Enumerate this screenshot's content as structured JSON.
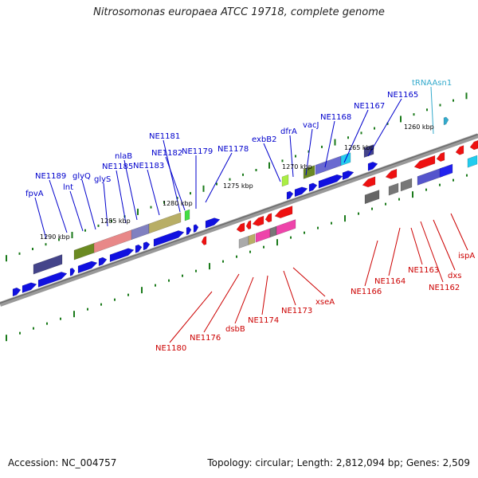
{
  "title": "Nitrosomonas europaea ATCC 19718, complete genome",
  "accession": "Accession: NC_004757",
  "summary": "Topology: circular; Length: 2,812,094 bp; Genes: 2,509",
  "colors": {
    "top_label": "#0000cc",
    "bottom_label": "#cc0000",
    "trna": "#33aacc",
    "tick": "#1a7a1a"
  },
  "kbp_labels": [
    "1290 kbp",
    "1285 kbp",
    "1280 kbp",
    "1275 kbp",
    "1270 kbp",
    "1265 kbp",
    "1260 kbp"
  ],
  "top_genes": [
    "fpvA",
    "NE1189",
    "lnt",
    "glyQ",
    "glyS",
    "NE1185",
    "nlaB",
    "NE1183",
    "NE1181",
    "NE1182",
    "NE1179",
    "NE1178",
    "exbB2",
    "dfrA",
    "vacJ",
    "NE1168",
    "NE1167",
    "NE1165",
    "tRNAAsn1"
  ],
  "bottom_genes": [
    "NE1180",
    "NE1176",
    "dsbB",
    "NE1174",
    "NE1173",
    "xseA",
    "NE1166",
    "NE1164",
    "NE1163",
    "NE1162",
    "dxs",
    "ispA"
  ]
}
